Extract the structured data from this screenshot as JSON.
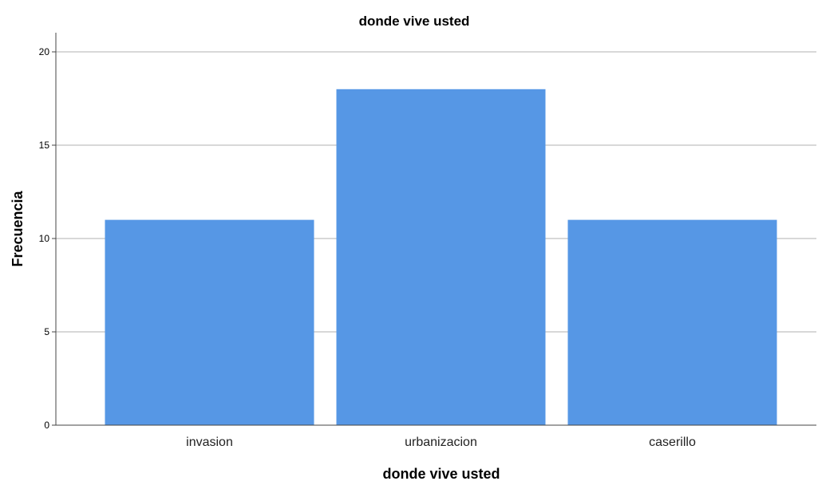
{
  "chart_data": {
    "type": "bar",
    "title": "donde vive usted",
    "xlabel": "donde vive usted",
    "ylabel": "Frecuencia",
    "categories": [
      "invasion",
      "urbanizacion",
      "caserillo"
    ],
    "values": [
      11,
      18,
      11
    ],
    "ylim": [
      0,
      21
    ],
    "yticks": [
      0,
      5,
      10,
      15,
      20
    ],
    "grid": true,
    "legend": "none",
    "bar_color": "#5697E5",
    "grid_color": "#CCCCCC",
    "axis_color": "#444444"
  }
}
